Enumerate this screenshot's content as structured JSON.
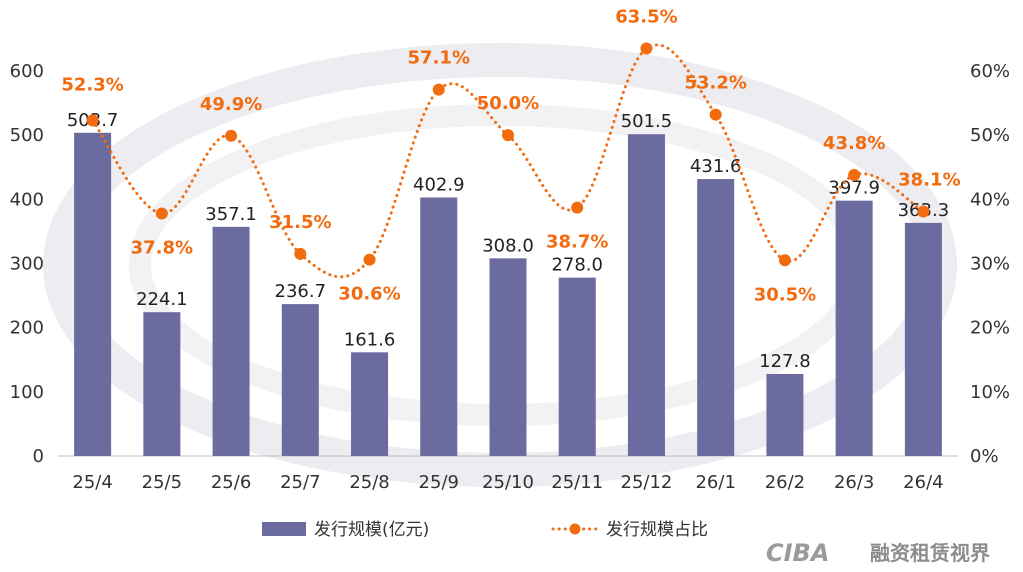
{
  "colors": {
    "bar": "#6b6b9f",
    "line": "#f26b0f",
    "axis": "#bfbfbf",
    "watermark": "#e9e9ee"
  },
  "chart_data": {
    "type": "bar",
    "categories": [
      "25/4",
      "25/5",
      "25/6",
      "25/7",
      "25/8",
      "25/9",
      "25/10",
      "25/11",
      "25/12",
      "26/1",
      "26/2",
      "26/3",
      "26/4"
    ],
    "series": [
      {
        "name": "发行规模(亿元)",
        "type": "bar",
        "axis": "left",
        "values": [
          503.7,
          224.1,
          357.1,
          236.7,
          161.6,
          402.9,
          308.0,
          278.0,
          501.5,
          431.6,
          127.8,
          397.9,
          363.3
        ],
        "labels": [
          "503.7",
          "224.1",
          "357.1",
          "236.7",
          "161.6",
          "402.9",
          "308.0",
          "278.0",
          "501.5",
          "431.6",
          "127.8",
          "397.9",
          "363.3"
        ]
      },
      {
        "name": "发行规模占比",
        "type": "line",
        "axis": "right",
        "values": [
          52.3,
          37.8,
          49.9,
          31.5,
          30.6,
          57.1,
          50.0,
          38.7,
          63.5,
          53.2,
          30.5,
          43.8,
          38.1
        ],
        "labels": [
          "52.3%",
          "37.8%",
          "49.9%",
          "31.5%",
          "30.6%",
          "57.1%",
          "50.0%",
          "38.7%",
          "63.5%",
          "53.2%",
          "30.5%",
          "43.8%",
          "38.1%"
        ]
      }
    ],
    "y_left": {
      "range": [
        0,
        600
      ],
      "ticks": [
        0,
        100,
        200,
        300,
        400,
        500,
        600
      ],
      "tick_labels": [
        "0",
        "100",
        "200",
        "300",
        "400",
        "500",
        "600"
      ]
    },
    "y_right": {
      "range": [
        0,
        60
      ],
      "ticks": [
        0,
        10,
        20,
        30,
        40,
        50,
        60
      ],
      "tick_labels": [
        "0%",
        "10%",
        "20%",
        "30%",
        "40%",
        "50%",
        "60%"
      ]
    },
    "legend": {
      "position": "bottom"
    },
    "grid": false
  },
  "watermark": {
    "logo": "CIBA",
    "text": "融资租赁视界"
  }
}
